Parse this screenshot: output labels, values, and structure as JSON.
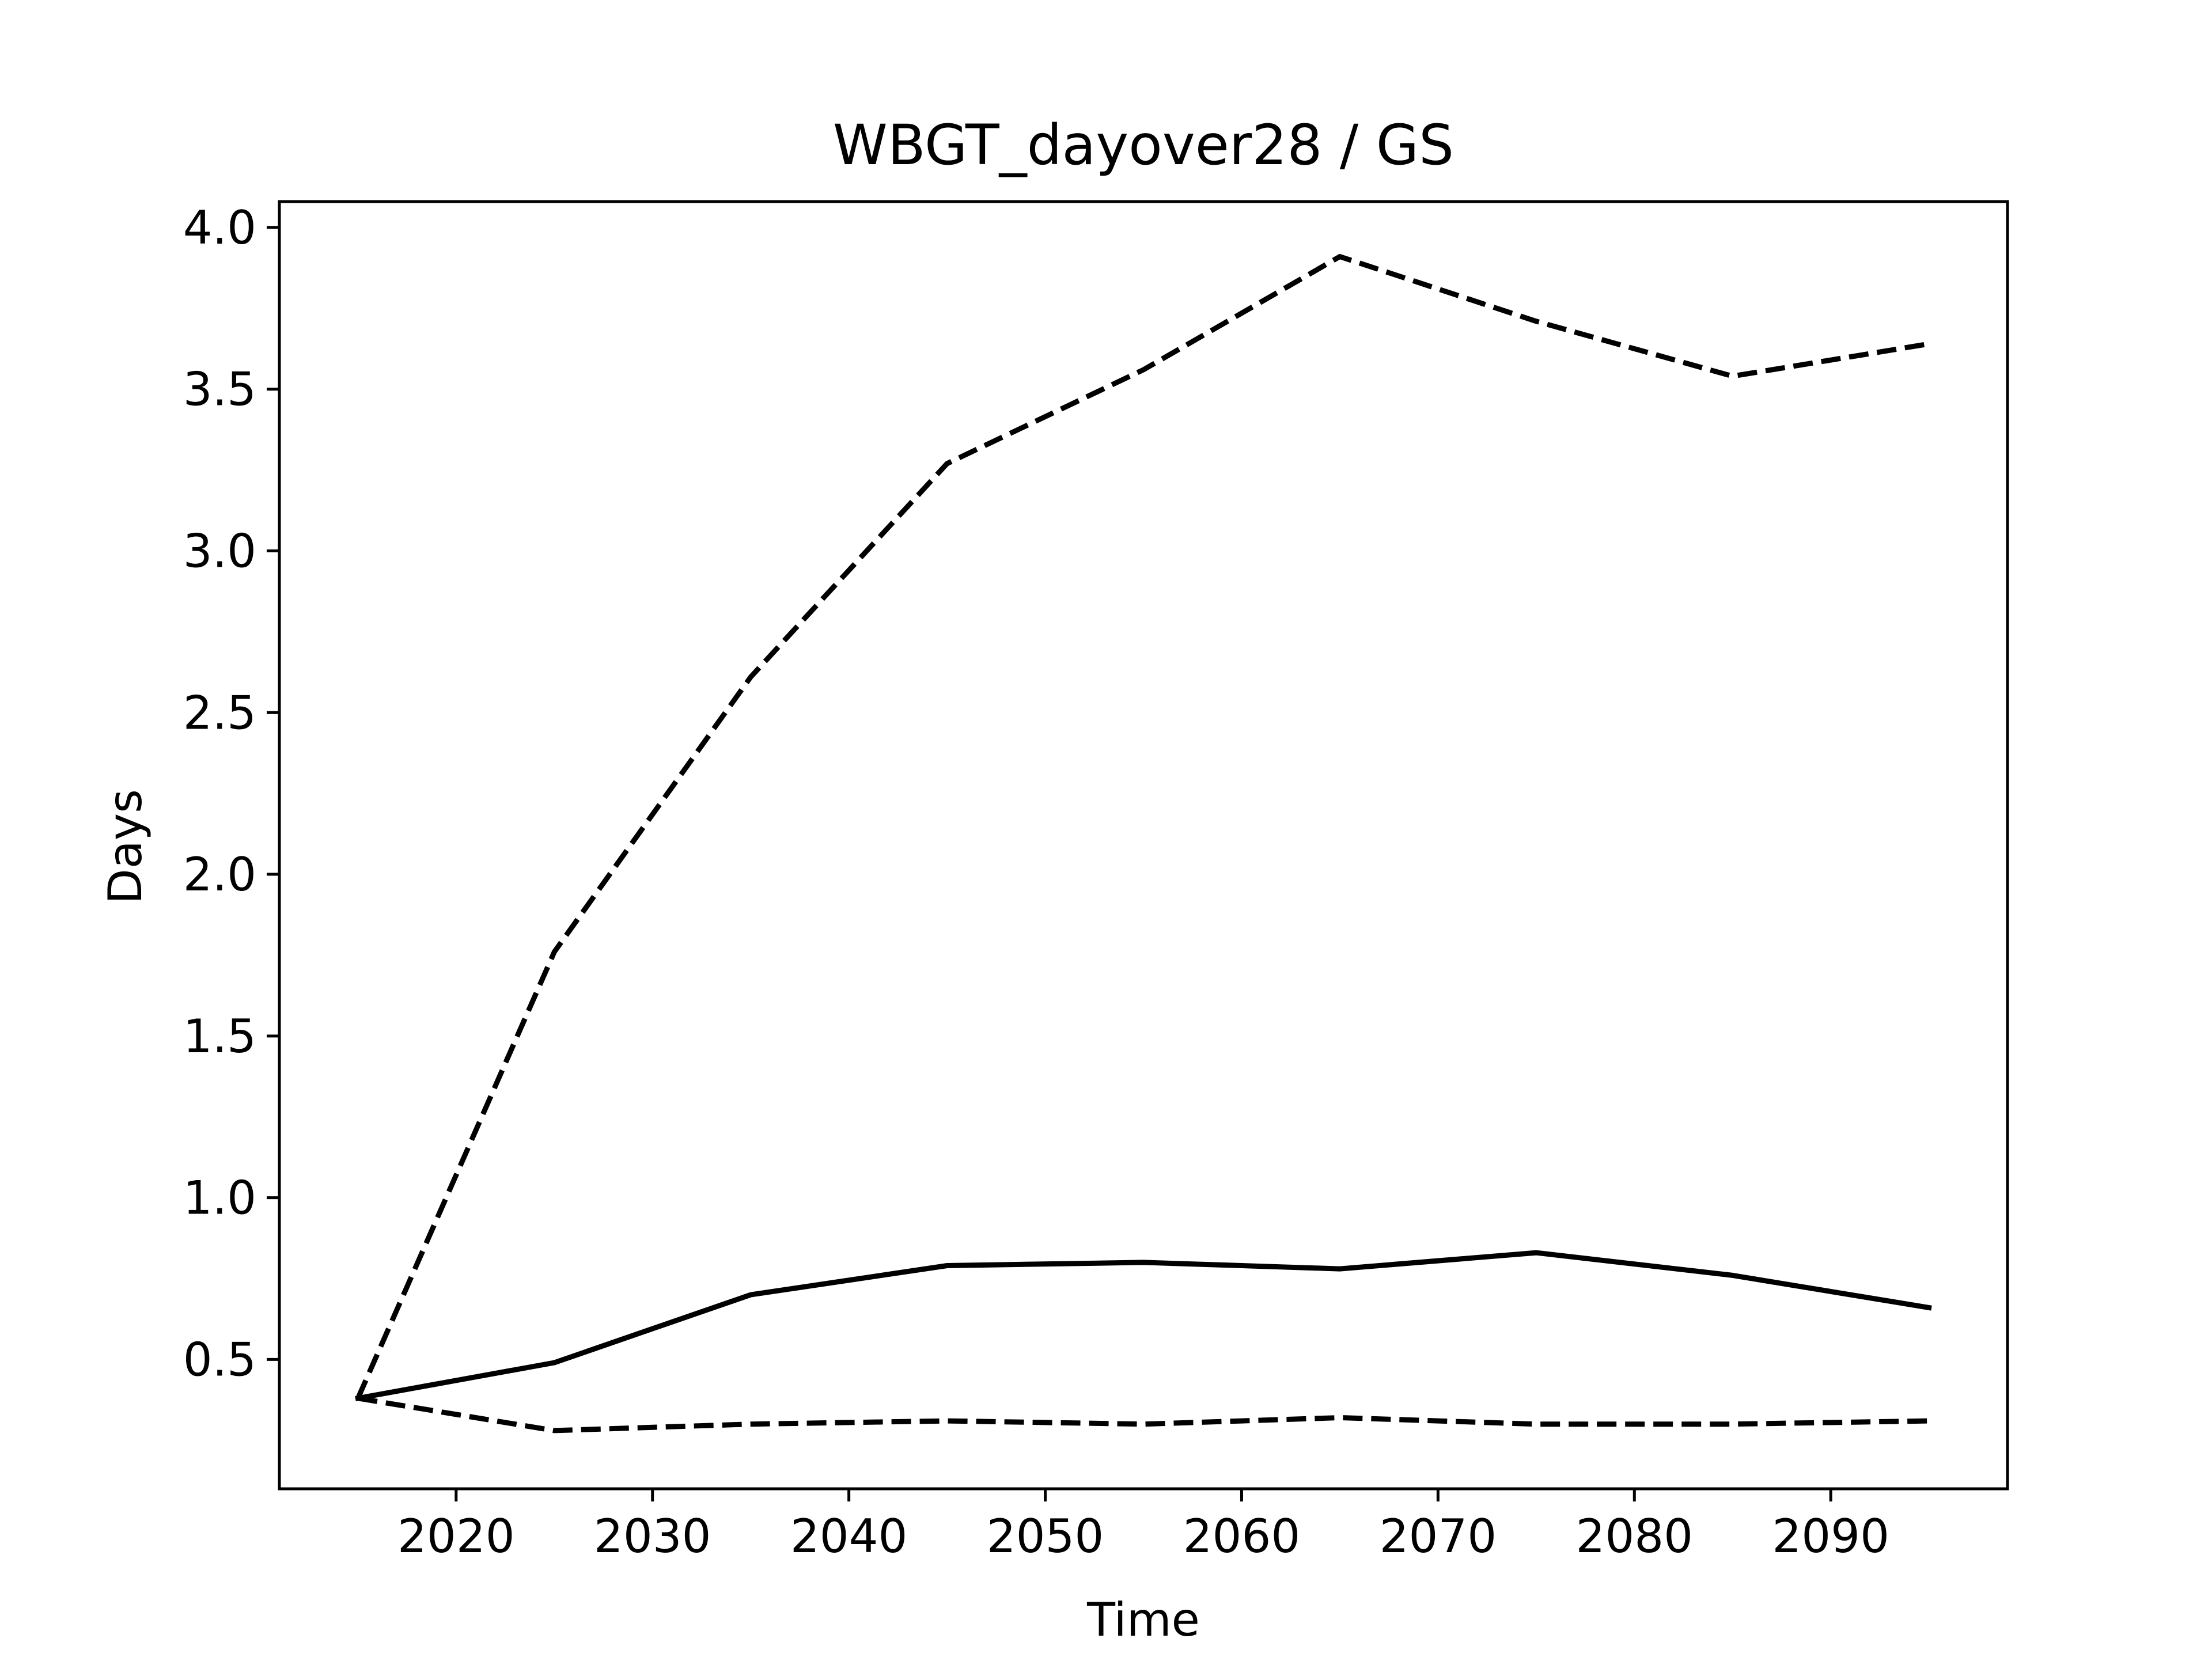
{
  "chart_data": {
    "type": "line",
    "title": "WBGT_dayover28 / GS",
    "xlabel": "Time",
    "ylabel": "Days",
    "xlim": [
      2011,
      2099
    ],
    "ylim": [
      0.1,
      4.08
    ],
    "xticks": [
      2020,
      2030,
      2040,
      2050,
      2060,
      2070,
      2080,
      2090
    ],
    "yticks": [
      0.5,
      1.0,
      1.5,
      2.0,
      2.5,
      3.0,
      3.5,
      4.0
    ],
    "ytick_labels": [
      "0.5",
      "1.0",
      "1.5",
      "2.0",
      "2.5",
      "3.0",
      "3.5",
      "4.0"
    ],
    "grid": false,
    "x": [
      2015,
      2025,
      2035,
      2045,
      2055,
      2065,
      2075,
      2085,
      2095
    ],
    "series": [
      {
        "style": "dashed",
        "color": "#000000",
        "values": [
          0.38,
          1.76,
          2.61,
          3.27,
          3.56,
          3.91,
          3.71,
          3.54,
          3.64
        ]
      },
      {
        "style": "solid",
        "color": "#000000",
        "values": [
          0.38,
          0.49,
          0.7,
          0.79,
          0.8,
          0.78,
          0.83,
          0.76,
          0.66
        ]
      },
      {
        "style": "dashed",
        "color": "#000000",
        "values": [
          0.38,
          0.28,
          0.3,
          0.31,
          0.3,
          0.32,
          0.3,
          0.3,
          0.31
        ]
      }
    ]
  }
}
